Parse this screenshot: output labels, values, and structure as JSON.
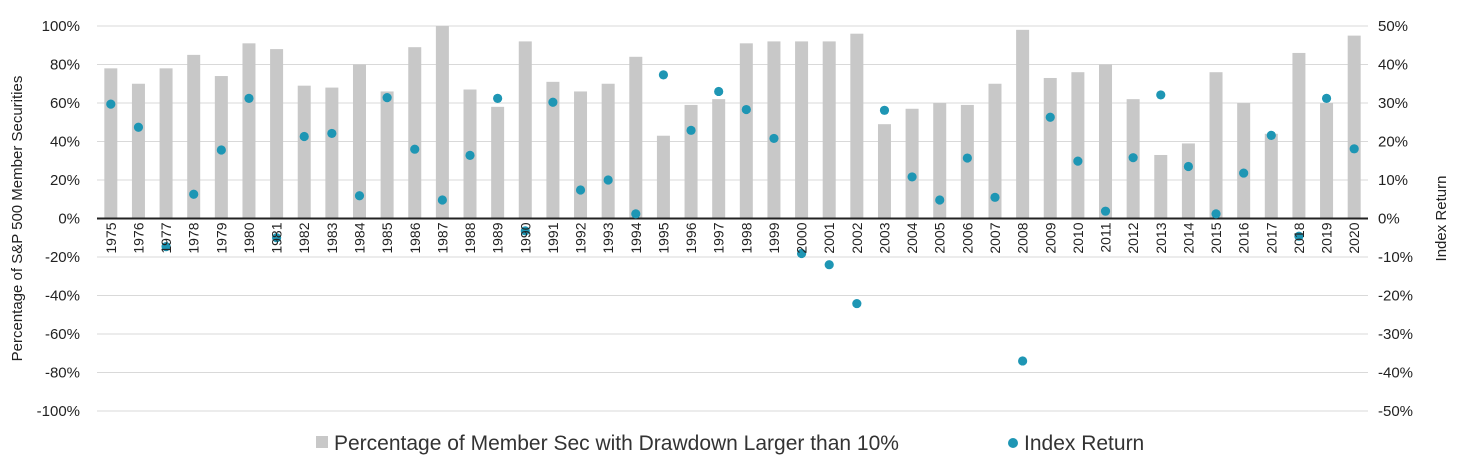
{
  "chart_data": {
    "type": "bar",
    "categories": [
      "1975",
      "1976",
      "1977",
      "1978",
      "1979",
      "1980",
      "1981",
      "1982",
      "1983",
      "1984",
      "1985",
      "1986",
      "1987",
      "1988",
      "1989",
      "1990",
      "1991",
      "1992",
      "1993",
      "1994",
      "1995",
      "1996",
      "1997",
      "1998",
      "1999",
      "2000",
      "2001",
      "2002",
      "2003",
      "2004",
      "2005",
      "2006",
      "2007",
      "2008",
      "2009",
      "2010",
      "2011",
      "2012",
      "2013",
      "2014",
      "2015",
      "2016",
      "2017",
      "2018",
      "2019",
      "2020"
    ],
    "series": [
      {
        "name": "Percentage of Member Sec with Drawdown Larger than 10%",
        "type": "bar",
        "axis": "left",
        "color": "#c8c8c8",
        "values": [
          78,
          70,
          78,
          85,
          74,
          91,
          88,
          69,
          68,
          80,
          66,
          89,
          100,
          67,
          58,
          92,
          71,
          66,
          70,
          84,
          43,
          59,
          62,
          91,
          92,
          92,
          92,
          96,
          49,
          57,
          60,
          59,
          70,
          98,
          73,
          76,
          80,
          62,
          33,
          39,
          76,
          60,
          44,
          86,
          60,
          95
        ]
      },
      {
        "name": "Index Return",
        "type": "scatter",
        "axis": "right",
        "color": "#1e96b4",
        "values": [
          29.7,
          23.7,
          -7.3,
          6.3,
          17.8,
          31.2,
          -5.0,
          21.3,
          22.1,
          5.9,
          31.4,
          18.0,
          4.8,
          16.4,
          31.2,
          -3.2,
          30.2,
          7.4,
          10.0,
          1.2,
          37.3,
          22.9,
          33.0,
          28.3,
          20.8,
          -9.1,
          -12.0,
          -22.1,
          28.1,
          10.8,
          4.8,
          15.7,
          5.5,
          -37.0,
          26.3,
          14.9,
          1.9,
          15.8,
          32.1,
          13.5,
          1.2,
          11.8,
          21.6,
          -4.6,
          31.2,
          18.1
        ]
      }
    ],
    "y_left": {
      "label": "Percentage of S&P 500 Member Securities",
      "min": -100,
      "max": 100,
      "step": 20,
      "tick_labels": [
        "-100%",
        "-80%",
        "-60%",
        "-40%",
        "-20%",
        "0%",
        "20%",
        "40%",
        "60%",
        "80%",
        "100%"
      ]
    },
    "y_right": {
      "label": "Index Return",
      "min": -50,
      "max": 50,
      "step": 10,
      "tick_labels": [
        "-50%",
        "-40%",
        "-30%",
        "-20%",
        "-10%",
        "0%",
        "10%",
        "20%",
        "30%",
        "40%",
        "50%"
      ]
    },
    "grid": true,
    "legend_position": "bottom"
  }
}
